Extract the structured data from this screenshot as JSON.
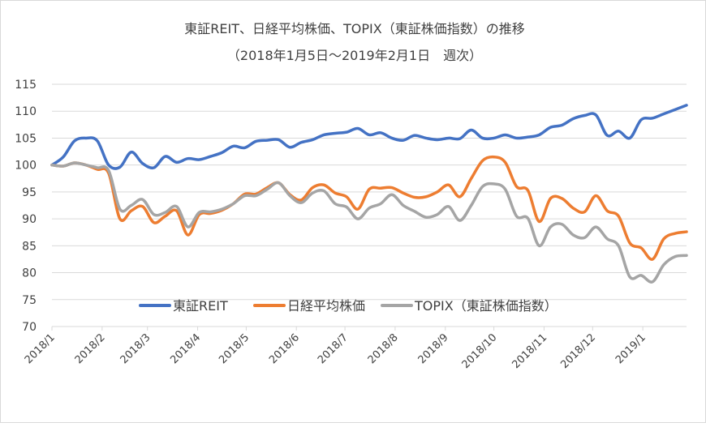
{
  "chart_data": {
    "type": "line",
    "title": "東証REIT、日経平均株価、TOPIX（東証株価指数）の推移",
    "subtitle": "（2018年1月5日～2019年2月1日　週次）",
    "x_start": "2018-01-05",
    "x_interval": "weekly",
    "x_end": "2019-02-01",
    "x_tick_labels": [
      "2018/1",
      "2018/2",
      "2018/3",
      "2018/4",
      "2018/5",
      "2018/6",
      "2018/7",
      "2018/8",
      "2018/9",
      "2018/10",
      "2018/11",
      "2018/12",
      "2019/1"
    ],
    "ylim": [
      70,
      115
    ],
    "y_ticks": [
      70,
      75,
      80,
      85,
      90,
      95,
      100,
      105,
      110,
      115
    ],
    "grid": "horizontal",
    "legend_position": "bottom-inside",
    "series": [
      {
        "name": "東証REIT",
        "color": "#4472C4",
        "values": [
          100,
          101.5,
          104.5,
          105,
          104.5,
          100,
          99.6,
          102.4,
          100.3,
          99.5,
          101.6,
          100.5,
          101.2,
          101,
          101.6,
          102.3,
          103.5,
          103.2,
          104.4,
          104.6,
          104.7,
          103.3,
          104.2,
          104.7,
          105.6,
          105.9,
          106.1,
          106.8,
          105.6,
          106,
          105,
          104.6,
          105.5,
          105,
          104.7,
          105,
          104.9,
          106.5,
          105,
          105,
          105.6,
          105,
          105.2,
          105.6,
          107,
          107.4,
          108.6,
          109.2,
          109.3,
          105.5,
          106.3,
          105,
          108.4,
          108.7,
          109.5,
          110.3,
          111.1
        ]
      },
      {
        "name": "日経平均株価",
        "color": "#ED7D31",
        "values": [
          100,
          99.8,
          100.4,
          100,
          99.2,
          98.5,
          90,
          91.5,
          92.3,
          89.3,
          90.5,
          91.5,
          87,
          90.8,
          91,
          91.6,
          92.8,
          94.6,
          94.6,
          95.8,
          96.7,
          94.5,
          93.5,
          95.8,
          96.3,
          94.8,
          94.1,
          91.8,
          95.5,
          95.7,
          95.8,
          94.8,
          94,
          94.1,
          95,
          96.3,
          94.1,
          97.5,
          100.8,
          101.5,
          100.5,
          96,
          95.3,
          89.5,
          93.8,
          93.8,
          92,
          91.3,
          94.3,
          91.5,
          90.5,
          85.5,
          84.6,
          82.5,
          86.3,
          87.3,
          87.6
        ]
      },
      {
        "name": "TOPIX（東証株価指数）",
        "color": "#A5A5A5",
        "values": [
          100,
          99.8,
          100.4,
          100,
          99.5,
          99,
          91.8,
          92.5,
          93.6,
          90.8,
          91.2,
          92.3,
          88.5,
          91.2,
          91.3,
          91.8,
          92.8,
          94.3,
          94.3,
          95.5,
          96.7,
          94.3,
          93,
          94.8,
          95.2,
          92.8,
          92.2,
          90,
          92,
          92.8,
          94.5,
          92.5,
          91.4,
          90.3,
          90.8,
          92.3,
          89.7,
          92.5,
          96,
          96.5,
          95.5,
          90.5,
          90.1,
          85,
          88.5,
          89,
          87,
          86.5,
          88.5,
          86.3,
          85,
          79.2,
          79.5,
          78.3,
          81.5,
          83,
          83.2
        ]
      }
    ]
  }
}
